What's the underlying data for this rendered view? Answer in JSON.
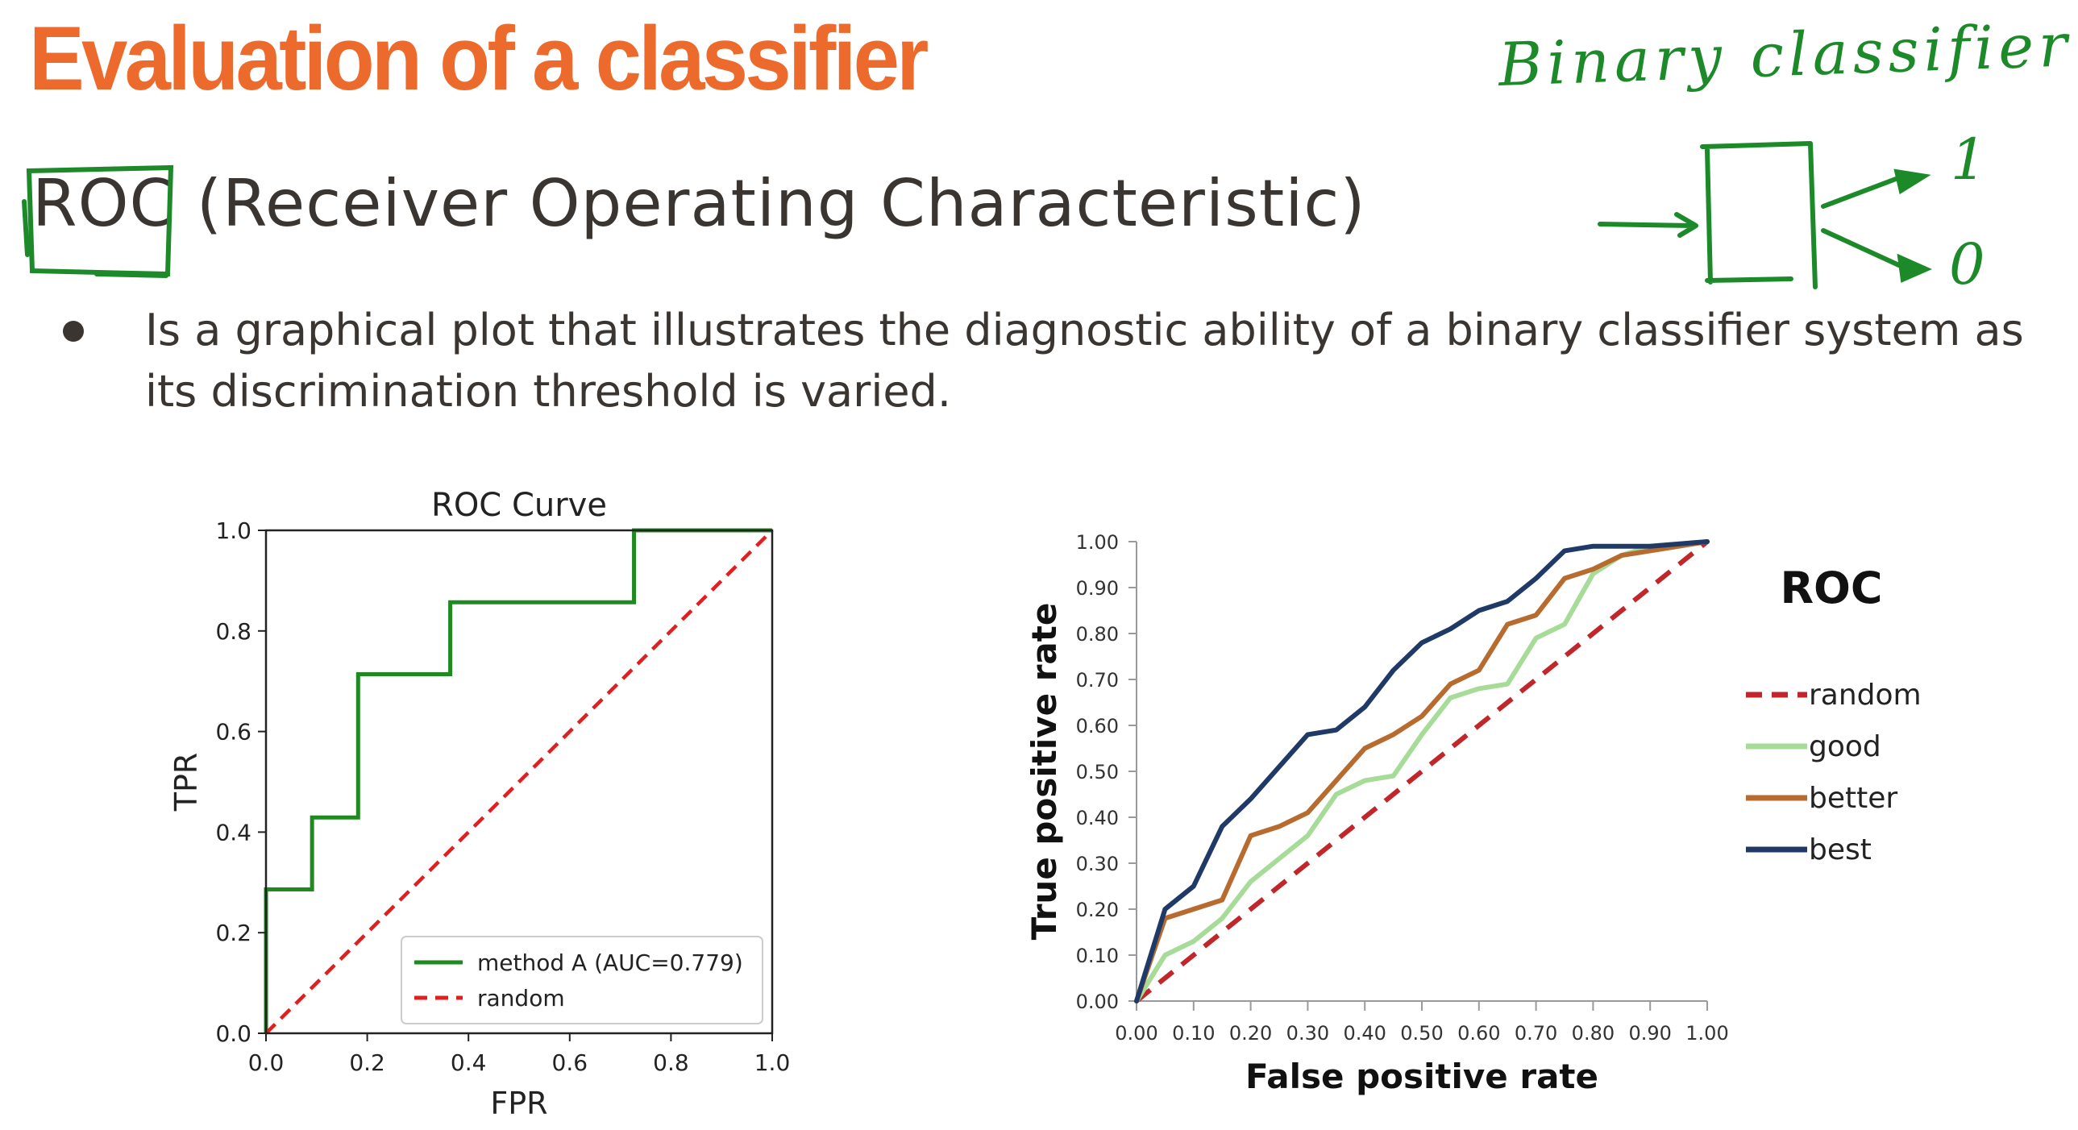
{
  "slide": {
    "title": "Evaluation of a classifier",
    "subtitle": "ROC (Receiver Operating Characteristic)",
    "bullet": "Is a graphical plot that illustrates the diagnostic ability of a binary classifier system as its discrimination threshold is varied.",
    "handwriting": [
      "Binary classifier",
      "1",
      "0"
    ],
    "colors": {
      "title": "#ec6a2c",
      "text": "#3a3530",
      "ink": "#1d8a2a"
    }
  },
  "chart_data": [
    {
      "type": "line",
      "title": "ROC Curve",
      "xlabel": "FPR",
      "ylabel": "TPR",
      "xlim": [
        0,
        1
      ],
      "ylim": [
        0,
        1
      ],
      "xticks": [
        "0.0",
        "0.2",
        "0.4",
        "0.6",
        "0.8",
        "1.0"
      ],
      "yticks": [
        "0.0",
        "0.2",
        "0.4",
        "0.6",
        "0.8",
        "1.0"
      ],
      "grid": false,
      "legend": "lower-right",
      "series": [
        {
          "name": "method A (AUC=0.779)",
          "color": "#1f8a1f",
          "style": "step",
          "x": [
            0,
            0,
            0.091,
            0.091,
            0.182,
            0.182,
            0.364,
            0.364,
            0.727,
            0.727,
            1.0
          ],
          "y": [
            0,
            0.286,
            0.286,
            0.429,
            0.429,
            0.714,
            0.714,
            0.857,
            0.857,
            1.0,
            1.0
          ]
        },
        {
          "name": "random",
          "color": "#e02020",
          "style": "dashed",
          "x": [
            0,
            1
          ],
          "y": [
            0,
            1
          ]
        }
      ]
    },
    {
      "type": "line",
      "title": "ROC",
      "xlabel": "False positive rate",
      "ylabel": "True  positive rate",
      "xlim": [
        0,
        1
      ],
      "ylim": [
        0,
        1
      ],
      "xticks": [
        "0.00",
        "0.10",
        "0.20",
        "0.30",
        "0.40",
        "0.50",
        "0.60",
        "0.70",
        "0.80",
        "0.90",
        "1.00"
      ],
      "yticks": [
        "0.00",
        "0.10",
        "0.20",
        "0.30",
        "0.40",
        "0.50",
        "0.60",
        "0.70",
        "0.80",
        "0.90",
        "1.00"
      ],
      "grid": false,
      "legend": "right",
      "series": [
        {
          "name": "random",
          "color": "#c0262a",
          "style": "dashed",
          "x": [
            0,
            1
          ],
          "y": [
            0,
            1
          ]
        },
        {
          "name": "good",
          "color": "#a6dc98",
          "style": "solid",
          "x": [
            0,
            0.05,
            0.1,
            0.15,
            0.2,
            0.25,
            0.3,
            0.35,
            0.4,
            0.45,
            0.5,
            0.55,
            0.6,
            0.65,
            0.7,
            0.75,
            0.8,
            0.85,
            0.9,
            1.0
          ],
          "y": [
            0,
            0.1,
            0.13,
            0.18,
            0.26,
            0.31,
            0.36,
            0.45,
            0.48,
            0.49,
            0.58,
            0.66,
            0.68,
            0.69,
            0.79,
            0.82,
            0.93,
            0.97,
            0.99,
            1.0
          ]
        },
        {
          "name": "better",
          "color": "#b86b2e",
          "style": "solid",
          "x": [
            0,
            0.05,
            0.1,
            0.15,
            0.2,
            0.25,
            0.3,
            0.35,
            0.4,
            0.45,
            0.5,
            0.55,
            0.6,
            0.65,
            0.7,
            0.75,
            0.8,
            0.85,
            0.9,
            1.0
          ],
          "y": [
            0,
            0.18,
            0.2,
            0.22,
            0.36,
            0.38,
            0.41,
            0.48,
            0.55,
            0.58,
            0.62,
            0.69,
            0.72,
            0.82,
            0.84,
            0.92,
            0.94,
            0.97,
            0.98,
            1.0
          ]
        },
        {
          "name": "best",
          "color": "#1f3a66",
          "style": "solid",
          "x": [
            0,
            0.05,
            0.1,
            0.15,
            0.2,
            0.25,
            0.3,
            0.35,
            0.4,
            0.45,
            0.5,
            0.55,
            0.6,
            0.65,
            0.7,
            0.75,
            0.8,
            0.85,
            0.9,
            1.0
          ],
          "y": [
            0,
            0.2,
            0.25,
            0.38,
            0.44,
            0.51,
            0.58,
            0.59,
            0.64,
            0.72,
            0.78,
            0.81,
            0.85,
            0.87,
            0.92,
            0.98,
            0.99,
            0.99,
            0.99,
            1.0
          ]
        }
      ]
    }
  ]
}
